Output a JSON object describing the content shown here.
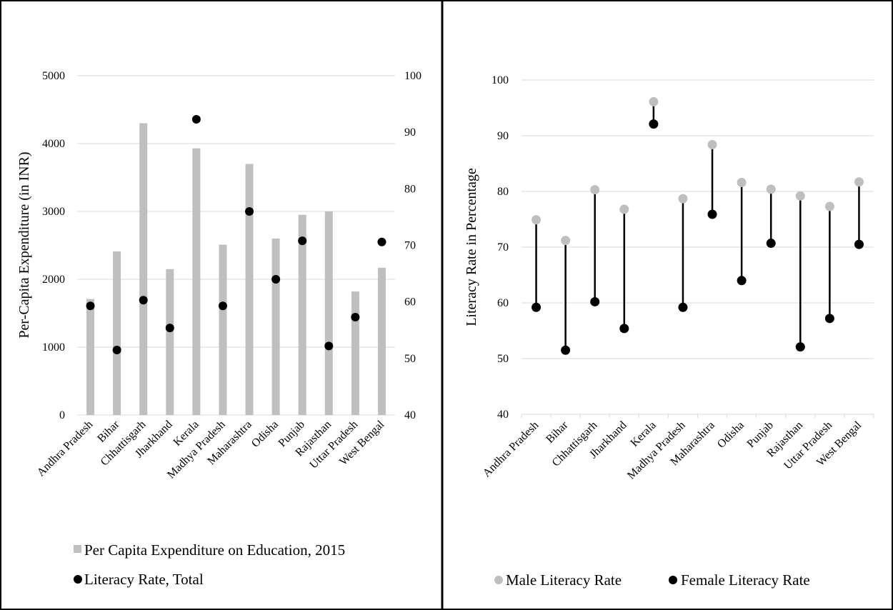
{
  "chart_data": [
    {
      "type": "bar",
      "categories": [
        "Andhra Pradesh",
        "Bihar",
        "Chhattisgarh",
        "Jharkhand",
        "Kerala",
        "Madhya Pradesh",
        "Maharashtra",
        "Odisha",
        "Punjab",
        "Rajasthan",
        "Uttar Pradesh",
        "West Bengal"
      ],
      "series": [
        {
          "name": "Per Capita Expenditure on Education, 2015",
          "axis": "left",
          "kind": "bar",
          "color": "#bfbfbf",
          "values": [
            1710,
            2410,
            4300,
            2150,
            3930,
            2510,
            3700,
            2600,
            2950,
            3000,
            1820,
            2170
          ]
        },
        {
          "name": "Literacy Rate, Total",
          "axis": "right",
          "kind": "marker",
          "color": "#000000",
          "values": [
            59.3,
            51.5,
            60.3,
            55.4,
            92.3,
            59.3,
            76.0,
            64.0,
            70.8,
            52.2,
            57.3,
            70.6
          ]
        }
      ],
      "ylabel": "Per-Capita Expenditure (in INR)",
      "ylim": [
        0,
        5000
      ],
      "yticks": [
        "0",
        "1000",
        "2000",
        "3000",
        "4000",
        "5000"
      ],
      "y2lim": [
        40,
        100
      ],
      "y2ticks": [
        "40",
        "50",
        "60",
        "70",
        "80",
        "90",
        "100"
      ],
      "grid": true,
      "legend": "bottom"
    },
    {
      "type": "scatter",
      "subtype": "dumbbell",
      "categories": [
        "Andhra Pradesh",
        "Bihar",
        "Chhattisgarh",
        "Jharkhand",
        "Kerala",
        "Madhya Pradesh",
        "Maharashtra",
        "Odisha",
        "Punjab",
        "Rajasthan",
        "Uttar Pradesh",
        "West Bengal"
      ],
      "series": [
        {
          "name": "Male Literacy Rate",
          "color": "#bfbfbf",
          "values": [
            74.9,
            71.2,
            80.3,
            76.8,
            96.1,
            78.7,
            88.4,
            81.6,
            80.4,
            79.2,
            77.3,
            81.7
          ]
        },
        {
          "name": "Female Literacy Rate",
          "color": "#000000",
          "values": [
            59.2,
            51.5,
            60.2,
            55.4,
            92.1,
            59.2,
            75.9,
            64.0,
            70.7,
            52.1,
            57.2,
            70.5
          ]
        }
      ],
      "ylabel": "Literacy Rate in Percentage",
      "ylim": [
        40,
        100
      ],
      "yticks": [
        "40",
        "50",
        "60",
        "70",
        "80",
        "90",
        "100"
      ],
      "grid": true,
      "legend": "bottom"
    }
  ]
}
